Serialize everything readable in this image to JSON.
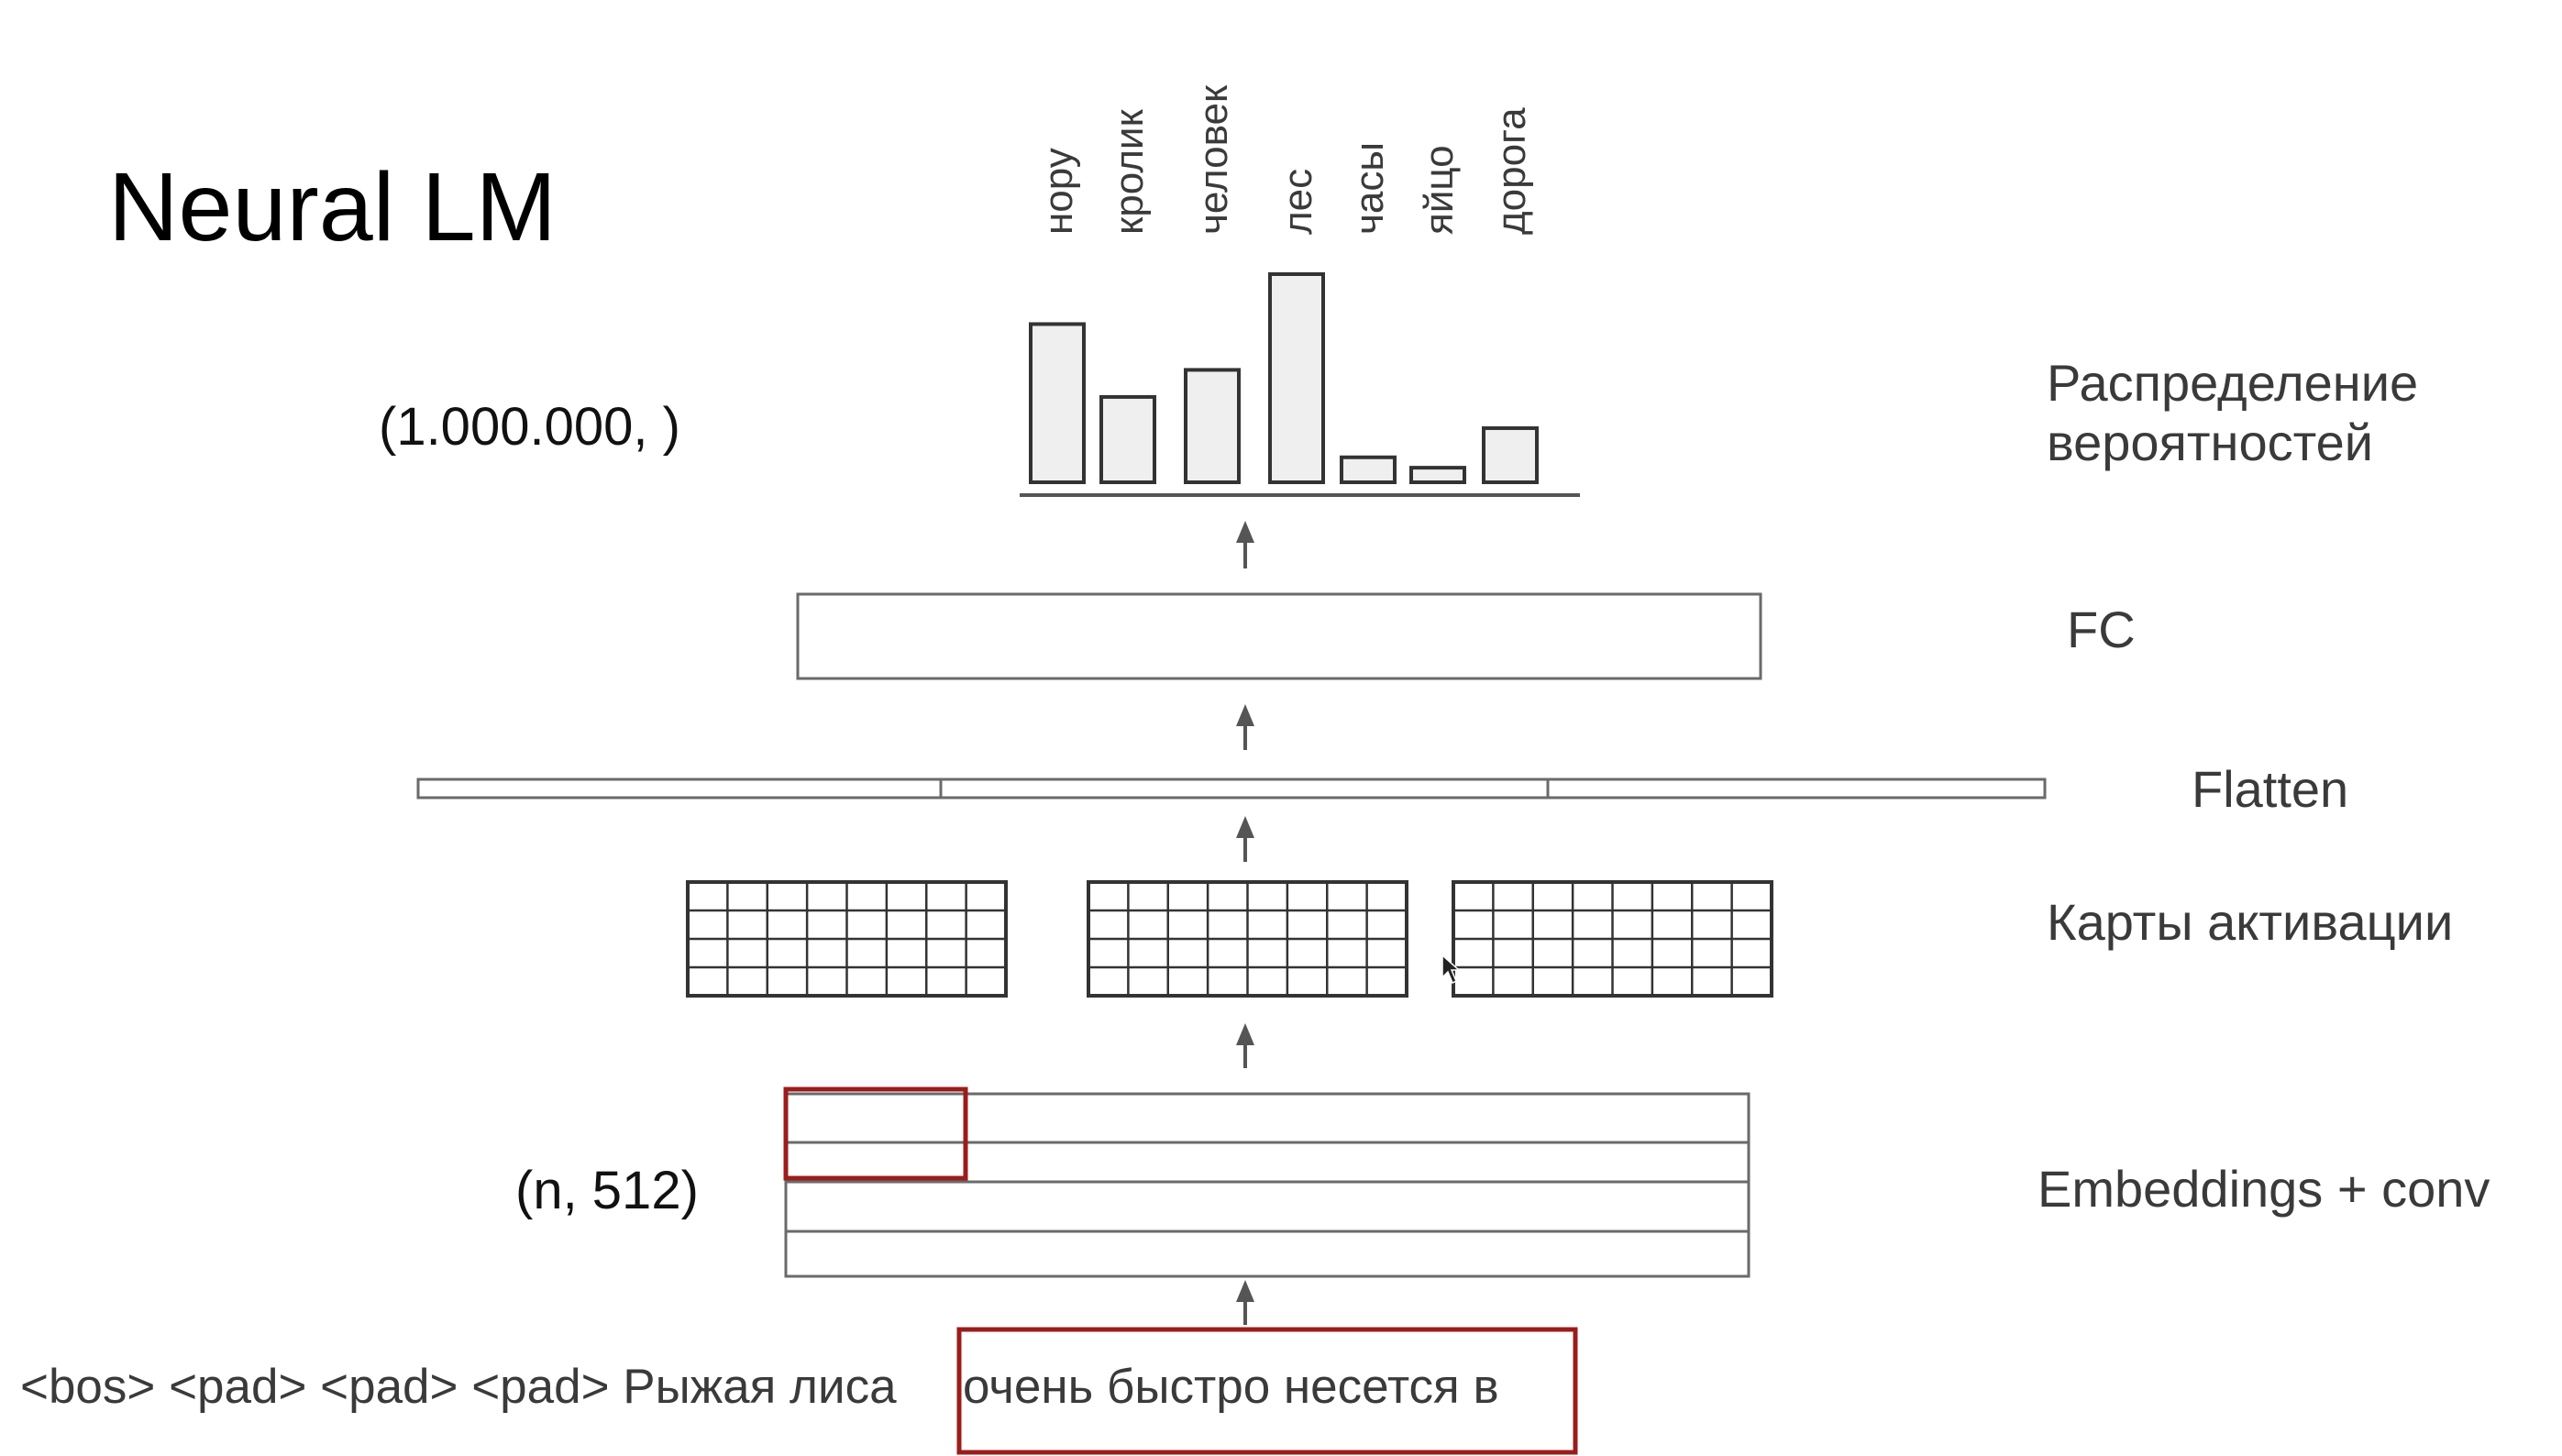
{
  "slide": {
    "title": "Neural LM",
    "output_shape": "(1.000.000, )",
    "input_shape": "(n, 512)"
  },
  "layers": {
    "distribution": "Распределение вероятностей",
    "distribution_lines": [
      "Распределение",
      "вероятностей"
    ],
    "fc": "FC",
    "flatten": "Flatten",
    "activation_maps": "Карты активации",
    "embeddings_conv": "Embeddings + conv"
  },
  "input_sentence": {
    "prefix": "<bos> <pad> <pad> <pad> Рыжая лиса",
    "window": "очень быстро несется в"
  },
  "colors": {
    "highlight": "#9b1c1c",
    "bar_fill": "#efefef",
    "stroke": "#333333"
  },
  "chart_data": {
    "type": "bar",
    "categories": [
      "нору",
      "кролик",
      "человек",
      "лес",
      "часы",
      "яйцо",
      "дорога"
    ],
    "values": [
      0.76,
      0.41,
      0.54,
      1.0,
      0.12,
      0.07,
      0.26
    ],
    "title": "",
    "xlabel": "",
    "ylabel": "",
    "ylim": [
      0,
      1
    ]
  }
}
